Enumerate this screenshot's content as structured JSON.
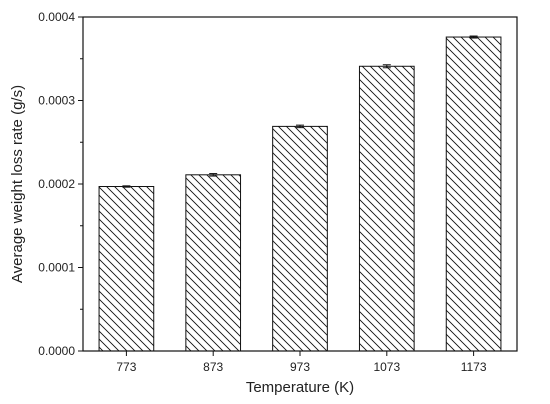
{
  "chart_data": {
    "type": "bar",
    "title": "",
    "xlabel": "Temperature (K)",
    "ylabel": "Average weight loss rate (g/s)",
    "categories": [
      "773",
      "873",
      "973",
      "1073",
      "1173"
    ],
    "values": [
      0.000197,
      0.000211,
      0.000269,
      0.000341,
      0.000376
    ],
    "errors": [
      8e-07,
      1.5e-06,
      1.5e-06,
      1.8e-06,
      1.2e-06
    ],
    "ylim": [
      0,
      0.0004
    ],
    "yticks": [
      0,
      0.0001,
      0.0002,
      0.0003,
      0.0004
    ],
    "ytick_labels": [
      "0.0000",
      "0.0001",
      "0.0002",
      "0.0003",
      "0.0004"
    ],
    "bar_fill": "hatched-diagonal",
    "bar_color": "#111111",
    "grid": false,
    "legend": "none"
  }
}
